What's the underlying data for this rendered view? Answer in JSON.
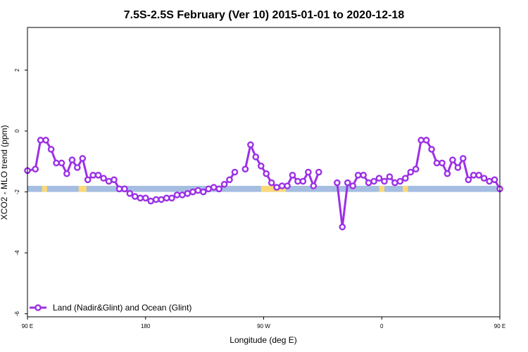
{
  "chart_data": {
    "type": "line",
    "title": "7.5S-2.5S February (Ver 10)   2015-01-01 to 2020-12-18",
    "xlabel": "Longitude (deg E)",
    "ylabel": "XCO2 - MLO trend (ppm)",
    "xlim": [
      90,
      450
    ],
    "ylim": [
      -6.1,
      3.4
    ],
    "xticks": [
      {
        "value": 90,
        "label": "90 E"
      },
      {
        "value": 180,
        "label": "180"
      },
      {
        "value": 270,
        "label": "90 W"
      },
      {
        "value": 360,
        "label": "0"
      },
      {
        "value": 450,
        "label": "90 E"
      },
      {
        "value": 540,
        "label": "180"
      }
    ],
    "yticks": [
      {
        "value": 2,
        "label": "2"
      },
      {
        "value": 0,
        "label": "0"
      },
      {
        "value": -2,
        "label": "-2"
      },
      {
        "value": -4,
        "label": "-4"
      },
      {
        "value": -6,
        "label": "-6"
      }
    ],
    "grid": false,
    "legend_position": "bottom-left",
    "colors": {
      "series": "#9b30e6",
      "ocean": "#a4bde0",
      "land": "#fbd978"
    },
    "surface_band": {
      "y_range": [
        -2.0,
        -1.8
      ],
      "land_ranges": [
        [
          101,
          105
        ],
        [
          129,
          135
        ],
        [
          268,
          287
        ],
        [
          358,
          362
        ],
        [
          376,
          380
        ],
        [
          455,
          460
        ],
        [
          484,
          490
        ]
      ]
    },
    "series": [
      {
        "name": "Land (Nadir&Glint) and Ocean (Glint)",
        "segments": [
          [
            [
              90,
              -1.3
            ],
            [
              96,
              -1.25
            ],
            [
              100,
              -0.3
            ],
            [
              104,
              -0.3
            ],
            [
              108,
              -0.6
            ],
            [
              112,
              -1.05
            ],
            [
              116,
              -1.05
            ],
            [
              120,
              -1.4
            ],
            [
              124,
              -0.95
            ],
            [
              128,
              -1.2
            ],
            [
              132,
              -0.9
            ],
            [
              136,
              -1.6
            ],
            [
              140,
              -1.45
            ],
            [
              144,
              -1.45
            ],
            [
              148,
              -1.55
            ],
            [
              152,
              -1.65
            ],
            [
              156,
              -1.6
            ],
            [
              160,
              -1.9
            ],
            [
              164,
              -1.9
            ],
            [
              168,
              -2.05
            ],
            [
              172,
              -2.15
            ],
            [
              176,
              -2.2
            ],
            [
              180,
              -2.2
            ],
            [
              184,
              -2.3
            ],
            [
              188,
              -2.25
            ],
            [
              192,
              -2.25
            ],
            [
              196,
              -2.2
            ],
            [
              200,
              -2.2
            ],
            [
              204,
              -2.1
            ],
            [
              208,
              -2.1
            ],
            [
              212,
              -2.05
            ],
            [
              216,
              -2.0
            ],
            [
              220,
              -1.95
            ],
            [
              224,
              -2.0
            ],
            [
              228,
              -1.9
            ],
            [
              232,
              -1.85
            ],
            [
              236,
              -1.9
            ],
            [
              240,
              -1.75
            ],
            [
              244,
              -1.6
            ],
            [
              248,
              -1.35
            ]
          ],
          [
            [
              256,
              -1.25
            ],
            [
              260,
              -0.45
            ],
            [
              264,
              -0.85
            ],
            [
              268,
              -1.15
            ],
            [
              272,
              -1.4
            ],
            [
              276,
              -1.7
            ],
            [
              280,
              -1.85
            ],
            [
              284,
              -1.8
            ],
            [
              288,
              -1.8
            ],
            [
              292,
              -1.45
            ],
            [
              296,
              -1.65
            ],
            [
              300,
              -1.65
            ],
            [
              304,
              -1.35
            ],
            [
              308,
              -1.8
            ],
            [
              312,
              -1.35
            ]
          ],
          [
            [
              326,
              -1.7
            ],
            [
              330,
              -3.15
            ],
            [
              334,
              -1.7
            ],
            [
              338,
              -1.8
            ],
            [
              342,
              -1.45
            ],
            [
              346,
              -1.45
            ],
            [
              350,
              -1.7
            ],
            [
              354,
              -1.65
            ],
            [
              358,
              -1.55
            ],
            [
              362,
              -1.65
            ],
            [
              366,
              -1.5
            ],
            [
              370,
              -1.7
            ],
            [
              374,
              -1.65
            ],
            [
              378,
              -1.55
            ],
            [
              382,
              -1.35
            ],
            [
              386,
              -1.25
            ],
            [
              390,
              -0.3
            ],
            [
              394,
              -0.3
            ],
            [
              398,
              -0.6
            ],
            [
              402,
              -1.05
            ],
            [
              406,
              -1.05
            ],
            [
              410,
              -1.4
            ],
            [
              414,
              -0.95
            ],
            [
              418,
              -1.2
            ],
            [
              422,
              -0.9
            ],
            [
              426,
              -1.6
            ],
            [
              430,
              -1.45
            ],
            [
              434,
              -1.45
            ],
            [
              438,
              -1.55
            ],
            [
              442,
              -1.65
            ],
            [
              446,
              -1.6
            ],
            [
              450,
              -1.9
            ]
          ]
        ]
      }
    ]
  }
}
